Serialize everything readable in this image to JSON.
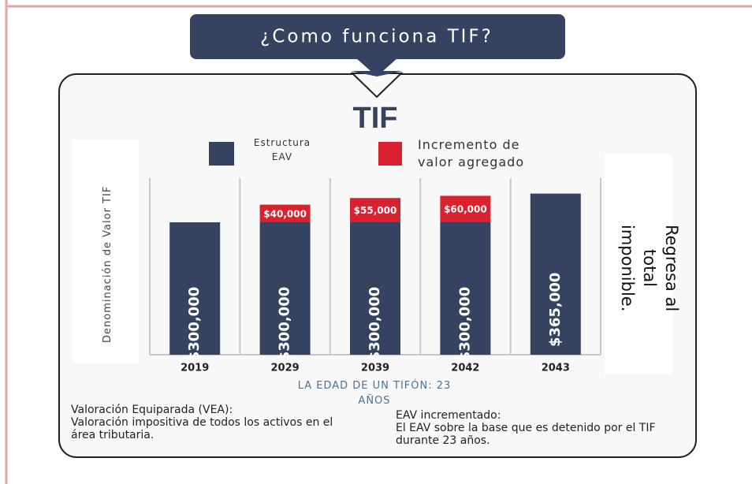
{
  "header": "¿Como funciona TIF?",
  "chart_data": {
    "type": "stacked-bar",
    "title": "TIF",
    "categories": [
      "2019",
      "2029",
      "2039",
      "2042",
      "2043"
    ],
    "series": [
      {
        "name": "Estructura EAV",
        "color": "#354360",
        "values": [
          300000,
          300000,
          300000,
          300000,
          365000
        ],
        "value_labels": [
          "$300,000",
          "$300,000",
          "$300,000",
          "$300,000",
          "$365,000"
        ]
      },
      {
        "name": "Incremento de valor agregado",
        "color": "#d9222d",
        "values": [
          null,
          40000,
          55000,
          60000,
          null
        ],
        "value_labels": [
          null,
          "$40,000",
          "$55,000",
          "$60,000",
          null
        ]
      }
    ],
    "ylim": [
      0,
      400000
    ],
    "ylabel": "Denominación de Valor TIF",
    "xlabel": "LA EDAD DE UN TIFÓN: 23 AÑOS",
    "side_note": "Regresa al total imponible.",
    "grid": true
  },
  "notes": [
    {
      "title": "Valoración Equiparada (VEA):",
      "text": "Valoración impositiva de todos los activos en el área tributaria."
    },
    {
      "title": "EAV incrementado:",
      "text": "El EAV sobre la base que es detenido por el TIF durante 23 años."
    }
  ]
}
